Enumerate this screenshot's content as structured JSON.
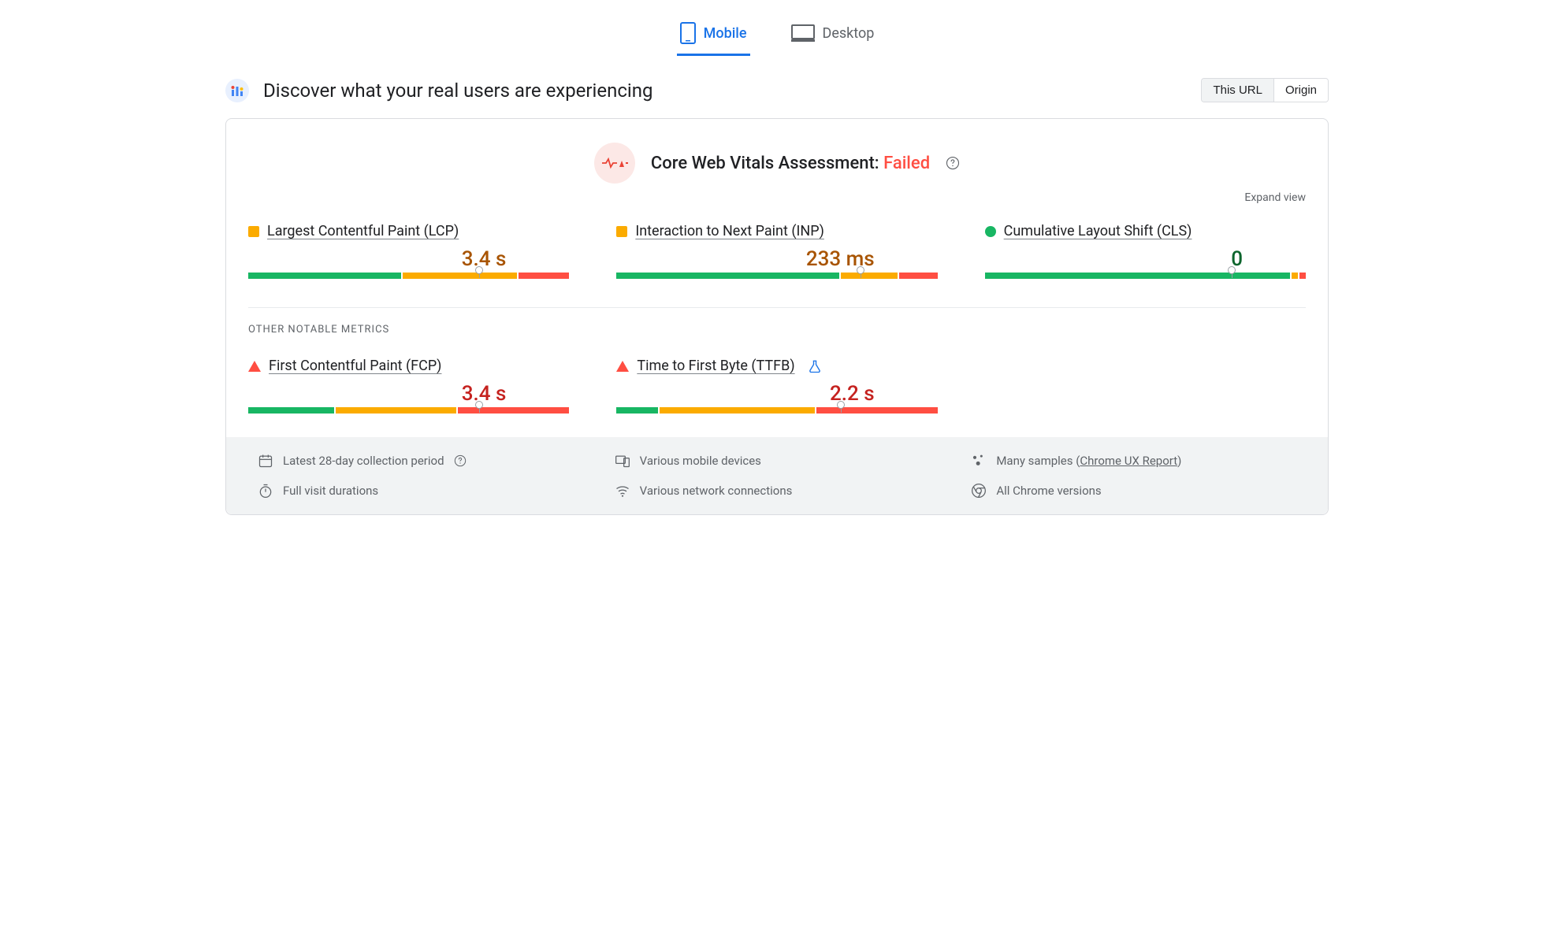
{
  "tabs": {
    "mobile": "Mobile",
    "desktop": "Desktop",
    "active": "mobile"
  },
  "header": {
    "title": "Discover what your real users are experiencing",
    "scope": {
      "this_url": "This URL",
      "origin": "Origin",
      "active": "this_url"
    }
  },
  "assessment": {
    "label": "Core Web Vitals Assessment:",
    "status_text": "Failed",
    "status_color": "#ff4e42",
    "icon_bg": "#fce8e6",
    "icon_color": "#ea4335",
    "expand_label": "Expand view"
  },
  "colors": {
    "good": "#18b663",
    "needs": "#fbab00",
    "poor": "#ff4e42",
    "needs_text": "#a85402",
    "poor_text": "#c5221f",
    "good_text": "#0d652d"
  },
  "core_metrics": [
    {
      "id": "lcp",
      "name": "Largest Contentful Paint (LCP)",
      "status": "needs",
      "value": "3.4 s",
      "distribution": {
        "good": 48,
        "needs": 36,
        "poor": 16
      },
      "marker_pct": 72
    },
    {
      "id": "inp",
      "name": "Interaction to Next Paint (INP)",
      "status": "needs",
      "value": "233 ms",
      "distribution": {
        "good": 70,
        "needs": 18,
        "poor": 12
      },
      "marker_pct": 76
    },
    {
      "id": "cls",
      "name": "Cumulative Layout Shift (CLS)",
      "status": "good",
      "value": "0",
      "distribution": {
        "good": 96,
        "needs": 2,
        "poor": 2
      },
      "marker_pct": 77
    }
  ],
  "other_label": "Other Notable Metrics",
  "other_metrics": [
    {
      "id": "fcp",
      "name": "First Contentful Paint (FCP)",
      "status": "poor",
      "value": "3.4 s",
      "distribution": {
        "good": 27,
        "needs": 38,
        "poor": 35
      },
      "marker_pct": 72
    },
    {
      "id": "ttfb",
      "name": "Time to First Byte (TTFB)",
      "status": "poor",
      "value": "2.2 s",
      "experimental": true,
      "distribution": {
        "good": 13,
        "needs": 49,
        "poor": 38
      },
      "marker_pct": 70
    }
  ],
  "facts": {
    "collection": "Latest 28-day collection period",
    "devices": "Various mobile devices",
    "samples_pre": "Many samples (",
    "samples_link": "Chrome UX Report",
    "samples_post": ")",
    "durations": "Full visit durations",
    "connections": "Various network connections",
    "versions": "All Chrome versions"
  }
}
